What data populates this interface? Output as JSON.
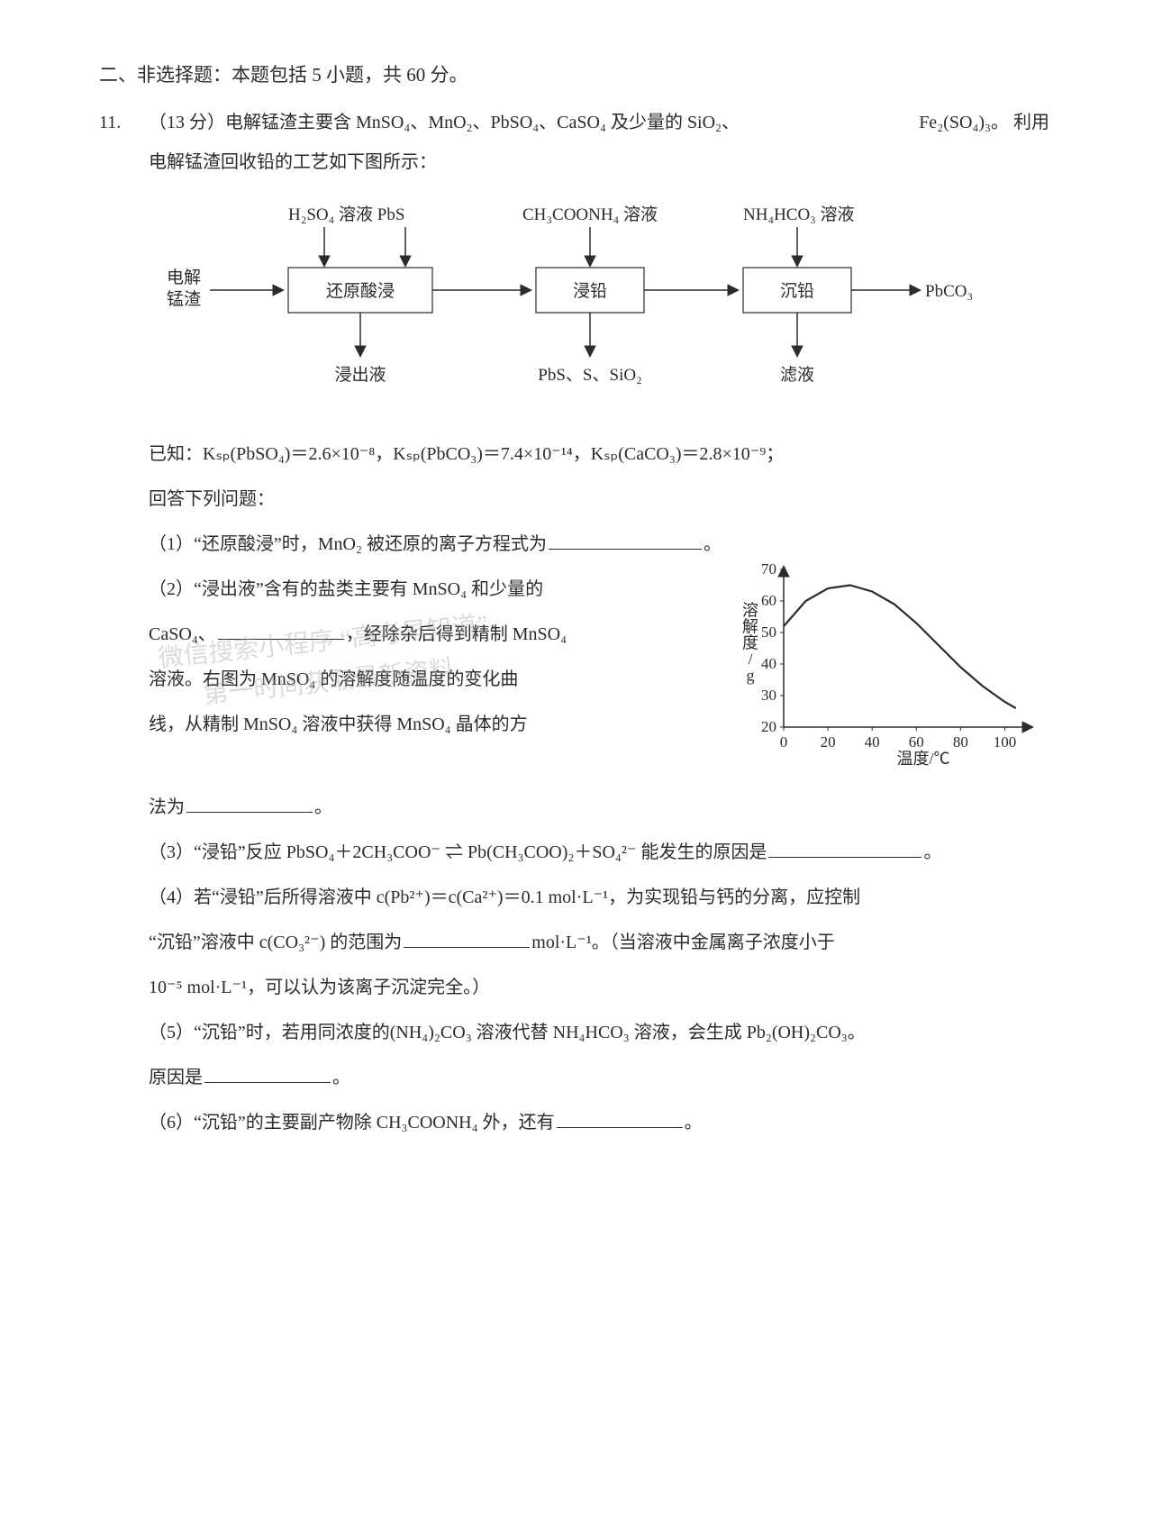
{
  "section_header": "二、非选择题：本题包括 5 小题，共 60 分。",
  "qnum": "11.",
  "q_points": "（13 分）",
  "q_intro_a": "电解锰渣主要含 MnSO₄、MnO₂、PbSO₄、CaSO₄ 及少量的 SiO₂、",
  "q_intro_tail": "Fe₂(SO₄)₃。 利用",
  "q_intro_b": "电解锰渣回收铅的工艺如下图所示：",
  "diagram": {
    "inputs_top": {
      "left": "H₂SO₄ 溶液   PbS",
      "mid": "CH₃COONH₄ 溶液",
      "right": "NH₄HCO₃ 溶液"
    },
    "feed_left": "电解\n锰渣",
    "boxes": [
      "还原酸浸",
      "浸铅",
      "沉铅"
    ],
    "out_right": "PbCO₃",
    "outputs_bottom": {
      "left": "浸出液",
      "mid": "PbS、S、SiO₂",
      "right": "滤液"
    }
  },
  "given_line": "已知：Kₛₚ(PbSO₄)＝2.6×10⁻⁸，Kₛₚ(PbCO₃)＝7.4×10⁻¹⁴，Kₛₚ(CaCO₃)＝2.8×10⁻⁹；",
  "answer_prompt": "回答下列问题：",
  "sub1": "（1）“还原酸浸”时，MnO₂ 被还原的离子方程式为",
  "sub1_end": "。",
  "sub2_a": "（2）“浸出液”含有的盐类主要有 MnSO₄ 和少量的",
  "sub2_b": "CaSO₄、",
  "sub2_c": "，经除杂后得到精制 MnSO₄",
  "sub2_d": "溶液。右图为 MnSO₄ 的溶解度随温度的变化曲",
  "sub2_e": "线，从精制 MnSO₄ 溶液中获得 MnSO₄ 晶体的方",
  "sub2_f": "法为",
  "sub2_end": "。",
  "chart": {
    "type": "line",
    "xlim": [
      0,
      110
    ],
    "ylim": [
      20,
      70
    ],
    "xticks": [
      0,
      20,
      40,
      60,
      80,
      100
    ],
    "yticks": [
      20,
      30,
      40,
      50,
      60,
      70
    ],
    "xlabel": "温度/℃",
    "ylabel": "溶解度/g",
    "tick_fontsize": 17,
    "label_fontsize": 18,
    "line_color": "#2b2b2b",
    "axis_color": "#2b2b2b",
    "line_width": 2.2,
    "points": [
      [
        0,
        52
      ],
      [
        10,
        60
      ],
      [
        20,
        64
      ],
      [
        30,
        65
      ],
      [
        40,
        63
      ],
      [
        50,
        59
      ],
      [
        60,
        53
      ],
      [
        70,
        46
      ],
      [
        80,
        39
      ],
      [
        90,
        33
      ],
      [
        100,
        28
      ],
      [
        105,
        26
      ]
    ]
  },
  "sub3_a": "（3）“浸铅”反应 PbSO₄＋2CH₃COO⁻  ⇌  Pb(CH₃COO)₂＋SO₄²⁻ 能发生的原因是",
  "sub3_end": "。",
  "sub4_a": "（4）若“浸铅”后所得溶液中 c(Pb²⁺)＝c(Ca²⁺)＝0.1 mol·L⁻¹，为实现铅与钙的分离，应控制",
  "sub4_b": "“沉铅”溶液中 c(CO₃²⁻) 的范围为",
  "sub4_unit": "mol·L⁻¹。（当溶液中金属离子浓度小于",
  "sub4_c": "10⁻⁵ mol·L⁻¹，可以认为该离子沉淀完全。）",
  "sub5_a": "（5）“沉铅”时，若用同浓度的(NH₄)₂CO₃ 溶液代替 NH₄HCO₃ 溶液，会生成 Pb₂(OH)₂CO₃。",
  "sub5_b": "原因是",
  "sub5_end": "。",
  "sub6_a": "（6）“沉铅”的主要副产物除 CH₃COONH₄ 外，还有",
  "sub6_end": "。",
  "watermarks": {
    "w1": "微信搜索小程序 “高考早知道”",
    "w2": "第一时间获取最新资料"
  },
  "colors": {
    "text": "#2b2b2b",
    "bg": "#ffffff",
    "watermark": "#999999"
  }
}
